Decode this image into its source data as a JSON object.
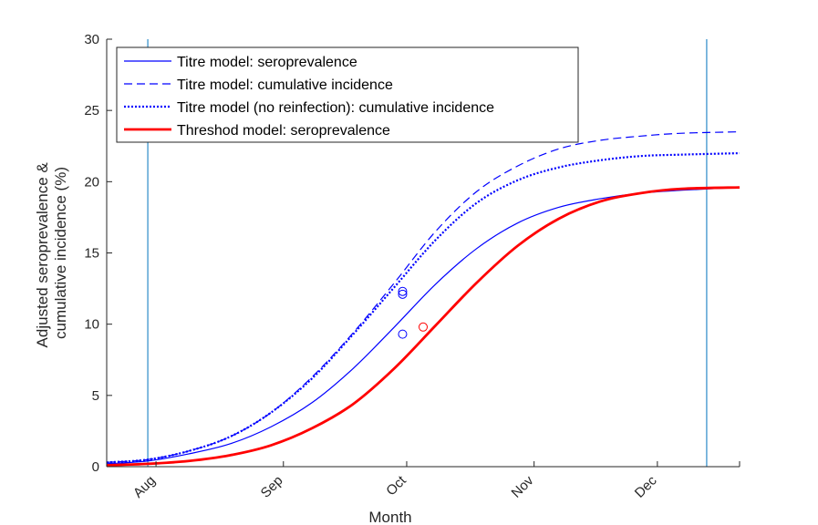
{
  "chart_data": {
    "type": "line",
    "title": "",
    "xlabel": "Month",
    "ylabel": [
      "Adjusted seroprevalence &",
      "cumulative incidence (%)"
    ],
    "ylim": [
      0,
      30
    ],
    "yticks": [
      0,
      5,
      10,
      15,
      20,
      25,
      30
    ],
    "xlim": [
      "2020-07-20",
      "2020-12-21"
    ],
    "xticks": [
      {
        "date": "2020-08-01",
        "label": "Aug"
      },
      {
        "date": "2020-09-01",
        "label": "Sep"
      },
      {
        "date": "2020-10-01",
        "label": "Oct"
      },
      {
        "date": "2020-11-01",
        "label": "Nov"
      },
      {
        "date": "2020-12-01",
        "label": "Dec"
      }
    ],
    "vlines": [
      "2020-07-30",
      "2020-12-13"
    ],
    "legend_position": "top-left",
    "colors": {
      "blue": "#0000ff",
      "red": "#ff0000",
      "vline": "#0072bd",
      "axis": "#262626"
    },
    "series": [
      {
        "name": "Titre model: seroprevalence",
        "style": "solid",
        "color": "#0000ff",
        "width": 1.2,
        "x": [
          "2020-07-20",
          "2020-07-30",
          "2020-08-09",
          "2020-08-19",
          "2020-08-29",
          "2020-09-08",
          "2020-09-18",
          "2020-09-28",
          "2020-10-08",
          "2020-10-18",
          "2020-10-28",
          "2020-11-07",
          "2020-11-17",
          "2020-11-27",
          "2020-12-07",
          "2020-12-21"
        ],
        "y": [
          0.2,
          0.4,
          0.9,
          1.6,
          2.8,
          4.5,
          6.9,
          9.8,
          12.8,
          15.3,
          17.1,
          18.2,
          18.8,
          19.2,
          19.4,
          19.6
        ]
      },
      {
        "name": "Titre model: cumulative incidence",
        "style": "dashed",
        "color": "#0000ff",
        "width": 1.2,
        "x": [
          "2020-07-20",
          "2020-07-30",
          "2020-08-09",
          "2020-08-19",
          "2020-08-29",
          "2020-09-08",
          "2020-09-18",
          "2020-09-28",
          "2020-10-08",
          "2020-10-18",
          "2020-10-28",
          "2020-11-07",
          "2020-11-17",
          "2020-11-27",
          "2020-12-07",
          "2020-12-21"
        ],
        "y": [
          0.3,
          0.5,
          1.1,
          2.1,
          3.8,
          6.3,
          9.4,
          12.9,
          16.5,
          19.3,
          21.1,
          22.3,
          22.9,
          23.2,
          23.4,
          23.5
        ]
      },
      {
        "name": "Titre model (no reinfection): cumulative incidence",
        "style": "dotted",
        "color": "#0000ff",
        "width": 2.2,
        "x": [
          "2020-07-20",
          "2020-07-30",
          "2020-08-09",
          "2020-08-19",
          "2020-08-29",
          "2020-09-08",
          "2020-09-18",
          "2020-09-28",
          "2020-10-08",
          "2020-10-18",
          "2020-10-28",
          "2020-11-07",
          "2020-11-17",
          "2020-11-27",
          "2020-12-07",
          "2020-12-21"
        ],
        "y": [
          0.3,
          0.5,
          1.1,
          2.1,
          3.8,
          6.2,
          9.3,
          12.6,
          15.9,
          18.5,
          20.1,
          21.0,
          21.5,
          21.8,
          21.9,
          22.0
        ]
      },
      {
        "name": "Threshod model: seroprevalence",
        "style": "solid",
        "color": "#ff0000",
        "width": 2.8,
        "x": [
          "2020-07-20",
          "2020-07-30",
          "2020-08-09",
          "2020-08-19",
          "2020-08-29",
          "2020-09-08",
          "2020-09-18",
          "2020-09-28",
          "2020-10-08",
          "2020-10-18",
          "2020-10-28",
          "2020-11-07",
          "2020-11-17",
          "2020-11-27",
          "2020-12-07",
          "2020-12-21"
        ],
        "y": [
          0.1,
          0.2,
          0.4,
          0.8,
          1.5,
          2.7,
          4.4,
          6.9,
          9.9,
          12.9,
          15.5,
          17.4,
          18.6,
          19.2,
          19.5,
          19.6
        ]
      }
    ],
    "markers": [
      {
        "date": "2020-09-30",
        "y": 9.3,
        "color": "#0000ff"
      },
      {
        "date": "2020-09-30",
        "y": 12.1,
        "color": "#0000ff"
      },
      {
        "date": "2020-09-30",
        "y": 12.3,
        "color": "#0000ff"
      },
      {
        "date": "2020-10-05",
        "y": 9.8,
        "color": "#ff0000"
      }
    ]
  }
}
